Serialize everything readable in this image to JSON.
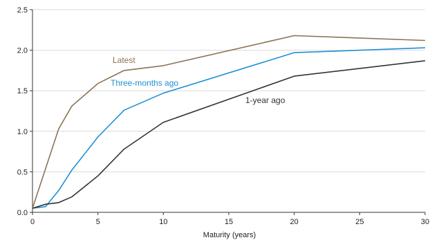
{
  "chart_data": {
    "type": "line",
    "title": "",
    "xlabel": "Maturity (years)",
    "ylabel": "",
    "xlim": [
      0,
      30
    ],
    "ylim": [
      0.0,
      2.5
    ],
    "xticks": [
      0,
      5,
      10,
      15,
      20,
      25,
      30
    ],
    "xtick_labels": [
      "0",
      "5",
      "10",
      "15",
      "20",
      "25",
      "30"
    ],
    "yticks": [
      0.0,
      0.5,
      1.0,
      1.5,
      2.0,
      2.5
    ],
    "ytick_labels": [
      "0.0",
      "0.5",
      "1.0",
      "1.5",
      "2.0",
      "2.5"
    ],
    "grid": "horizontal",
    "legend": "inline labels",
    "series": [
      {
        "name": "Latest",
        "color": "#8B7355",
        "x": [
          0,
          2,
          3,
          5,
          7,
          10,
          20,
          30
        ],
        "y": [
          0.05,
          1.03,
          1.31,
          1.59,
          1.75,
          1.81,
          2.18,
          2.12
        ]
      },
      {
        "name": "Three-months ago",
        "color": "#1E90D2",
        "x": [
          0,
          1,
          2,
          3,
          5,
          7,
          10,
          20,
          30
        ],
        "y": [
          0.05,
          0.07,
          0.27,
          0.52,
          0.93,
          1.26,
          1.47,
          1.97,
          2.03
        ]
      },
      {
        "name": "1-year ago",
        "color": "#333333",
        "x": [
          0,
          1,
          2,
          3,
          5,
          7,
          10,
          20,
          30
        ],
        "y": [
          0.05,
          0.1,
          0.12,
          0.19,
          0.45,
          0.78,
          1.11,
          1.68,
          1.87
        ]
      }
    ]
  }
}
